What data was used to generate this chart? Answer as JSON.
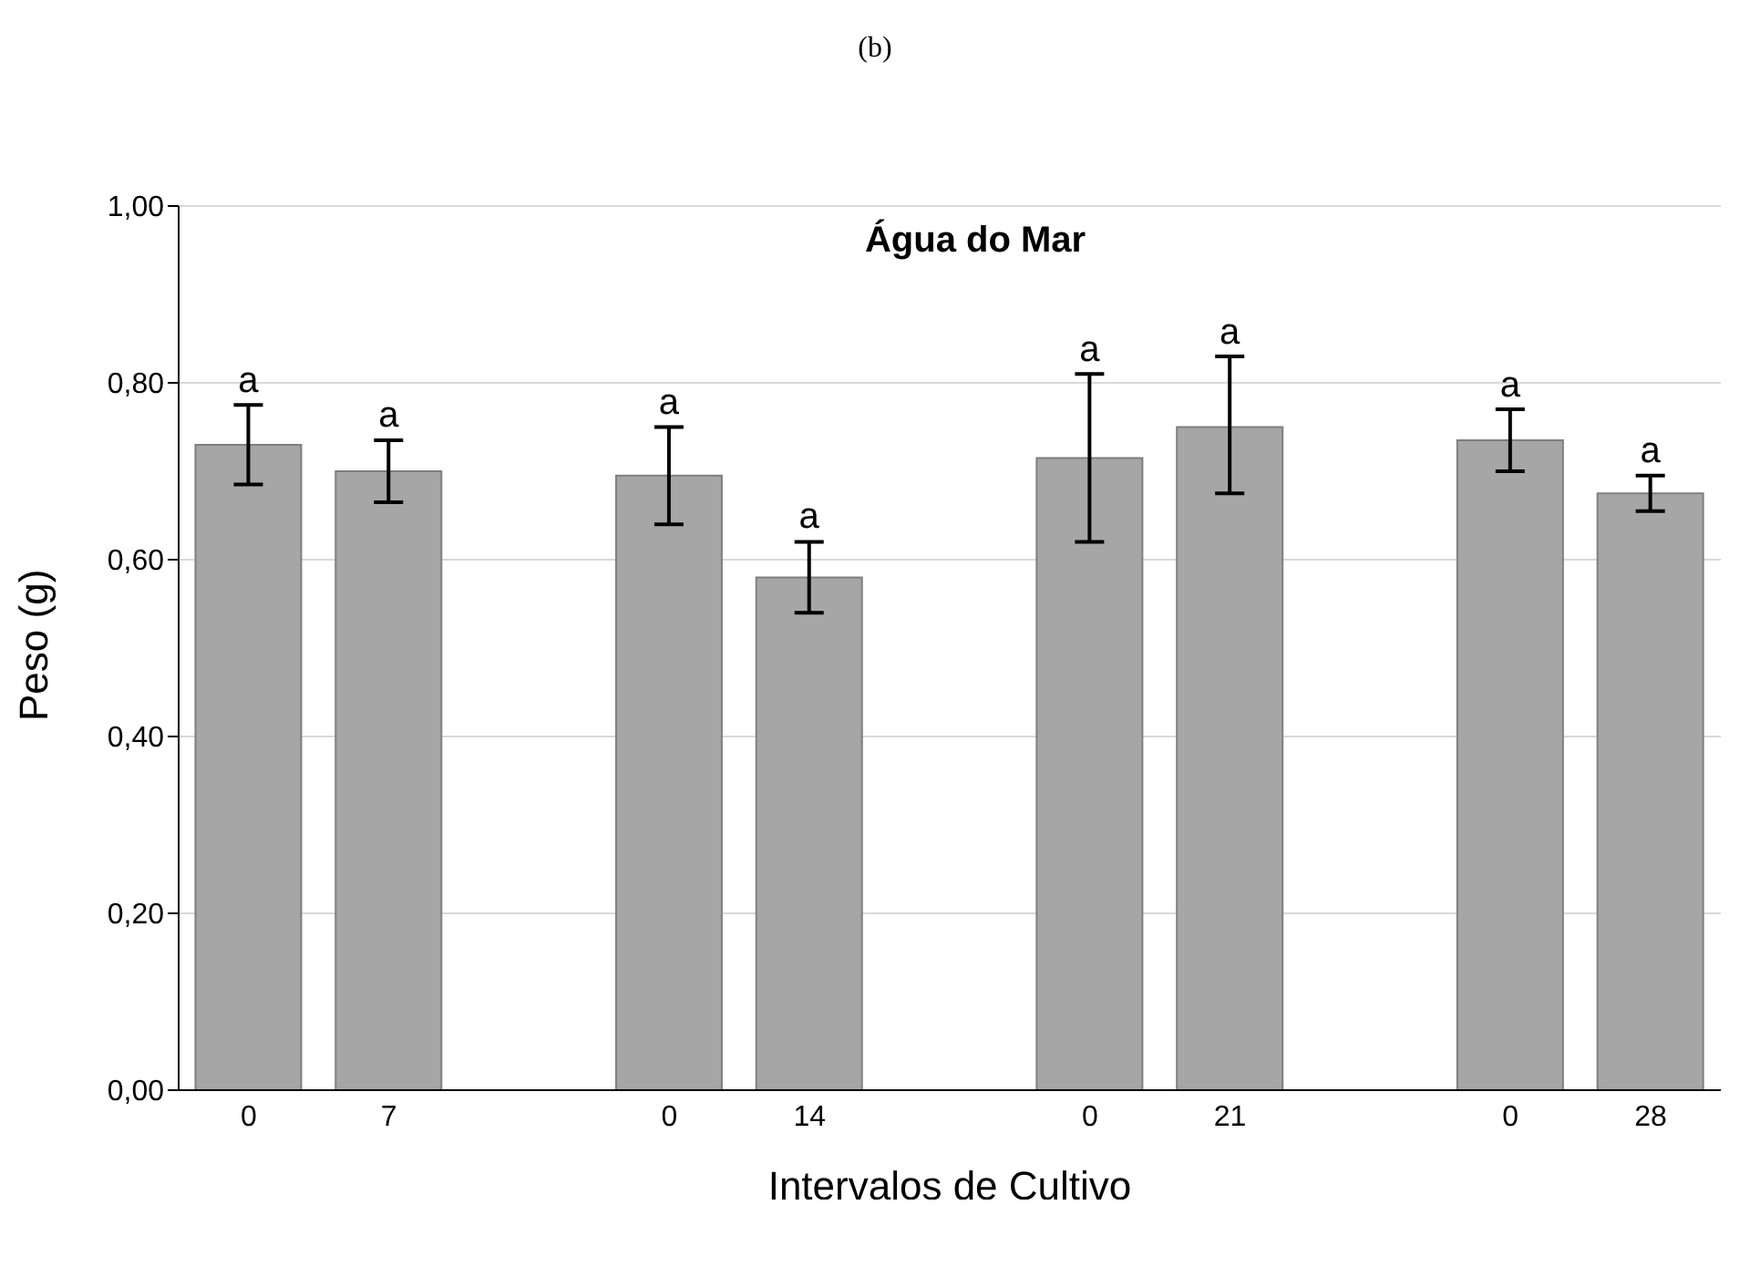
{
  "chart_data": {
    "type": "bar",
    "title": "(b)",
    "subtitle": "Água do Mar",
    "xlabel": "Intervalos de Cultivo",
    "ylabel": "Peso (g)",
    "categories": [
      "0",
      "7",
      null,
      "0",
      "14",
      null,
      "0",
      "21",
      null,
      "0",
      "28"
    ],
    "values": [
      0.73,
      0.7,
      null,
      0.695,
      0.58,
      null,
      0.715,
      0.75,
      null,
      0.735,
      0.675
    ],
    "errors": [
      [
        0.685,
        0.775
      ],
      [
        0.665,
        0.735
      ],
      null,
      [
        0.64,
        0.75
      ],
      [
        0.54,
        0.62
      ],
      null,
      [
        0.62,
        0.81
      ],
      [
        0.675,
        0.83
      ],
      null,
      [
        0.7,
        0.77
      ],
      [
        0.655,
        0.695
      ]
    ],
    "value_labels": [
      "a",
      "a",
      null,
      "a",
      "a",
      null,
      "a",
      "a",
      null,
      "a",
      "a"
    ],
    "color": "#a6a6a6",
    "ylim": [
      0,
      1
    ],
    "yticks": [
      {
        "value": 0,
        "label": "0,00"
      },
      {
        "value": 0.2,
        "label": "0,20"
      },
      {
        "value": 0.4,
        "label": "0,40"
      },
      {
        "value": 0.6,
        "label": "0,60"
      },
      {
        "value": 0.8,
        "label": "0,80"
      },
      {
        "value": 1,
        "label": "1,00"
      }
    ],
    "grid": "y",
    "legend": false
  }
}
